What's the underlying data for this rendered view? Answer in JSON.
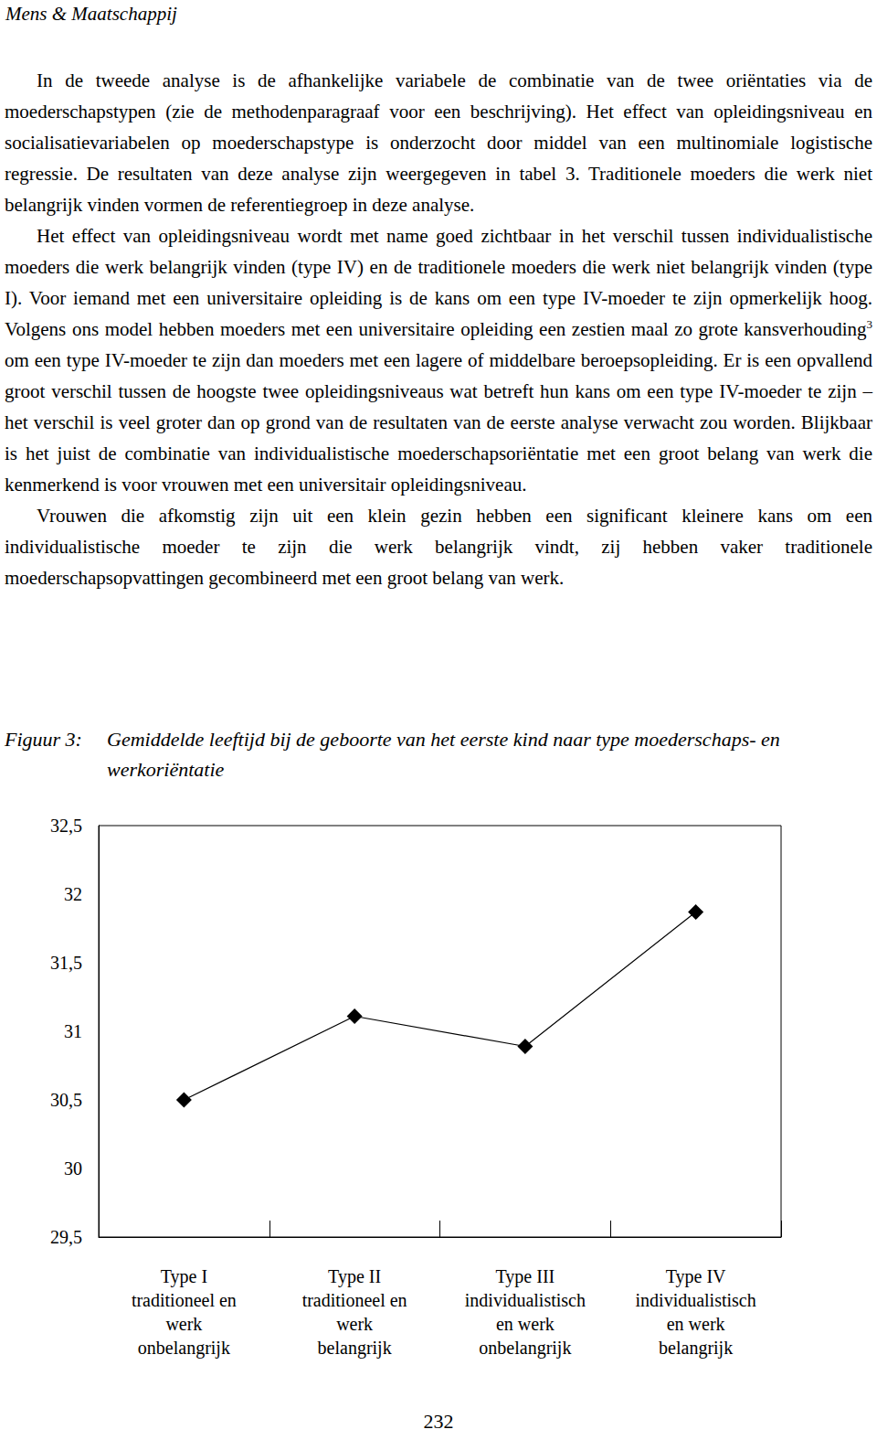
{
  "header": "Mens & Maatschappij",
  "paragraphs": [
    [
      {
        "text": "In de tweede analyse is de afhankelijke variabele de combinatie van de twee oriëntaties via de moederschapstypen (zie de methodenparagraaf voor een beschrijving). Het effect van opleidingsniveau en socialisatievariabelen op moederschapstype is onderzocht door middel van een multinomiale logistische regressie. De resultaten van deze analyse zijn weergegeven in tabel 3. Traditionele moeders die werk niet belangrijk vinden vormen de referentiegroep in deze analyse."
      }
    ],
    [
      {
        "text": "Het effect van opleidingsniveau wordt met name goed zichtbaar in het verschil tussen individualistische moeders die werk belangrijk vinden (type IV) en de traditionele moeders die werk niet belangrijk vinden (type I). Voor iemand met een universitaire opleiding is de kans om een type IV-moeder te zijn opmerkelijk hoog. Volgens ons model hebben moeders met een universitaire opleiding een zestien maal zo grote kansverhouding"
      },
      {
        "sup": "3"
      },
      {
        "text": " om een type IV-moeder te zijn dan moeders met een lagere of middelbare beroepsopleiding. Er is een opvallend groot verschil tussen de hoogste twee opleidingsniveaus wat betreft hun kans om een type IV-moeder te zijn – het verschil is veel groter dan op grond van de resultaten van de eerste analyse verwacht zou worden. Blijkbaar is het juist de combinatie van individualistische moederschapsoriëntatie met een groot belang van werk die kenmerkend is voor vrouwen met een universitair opleidingsniveau."
      }
    ],
    [
      {
        "text": "Vrouwen die afkomstig zijn uit een klein gezin hebben een significant kleinere kans om een individualistische moeder te zijn die werk belangrijk vindt, zij hebben vaker traditionele moederschapsopvattingen gecombineerd met een groot belang van werk."
      }
    ]
  ],
  "figure": {
    "label": "Figuur 3:",
    "caption": "Gemiddelde leeftijd bij de geboorte van het eerste kind naar type moederschaps- en werkoriëntatie"
  },
  "chart_data": {
    "type": "line",
    "categories": [
      "Type I\ntraditioneel en\nwerk\nonbelangrijk",
      "Type II\ntraditioneel en\nwerk\nbelangrijk",
      "Type III\nindividualistisch\nen werk\nonbelangrijk",
      "Type IV\nindividualistisch\nen werk\nbelangrijk"
    ],
    "values": [
      30.5,
      31.11,
      30.89,
      31.87
    ],
    "color": "#000000",
    "marker": "diamond",
    "line_style": "solid",
    "ylim": [
      29.5,
      32.5
    ],
    "yticks": [
      {
        "value": 29.5,
        "label": "29,5"
      },
      30,
      {
        "value": 30.5,
        "label": "30,5"
      },
      31,
      {
        "value": 31.5,
        "label": "31,5"
      },
      32,
      {
        "value": 32.5,
        "label": "32,5"
      }
    ],
    "grid": false
  },
  "page_number": "232"
}
